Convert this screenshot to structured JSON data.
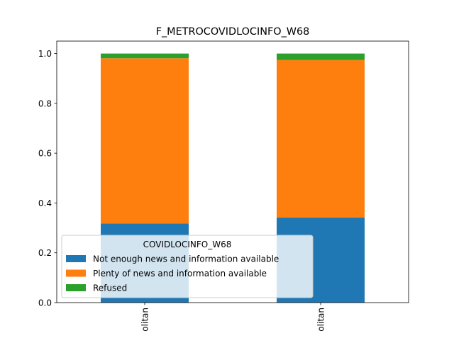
{
  "chart_data": {
    "type": "bar",
    "stacked": true,
    "title": "F_METROCOVIDLOCINFO_W68",
    "xlabel": "",
    "ylabel": "",
    "categories": [
      "olitan",
      "olitan"
    ],
    "series": [
      {
        "name": "Not enough news and information available",
        "color": "#1f77b4",
        "values": [
          0.318,
          0.342
        ]
      },
      {
        "name": "Plenty of news and information available",
        "color": "#ff7f0e",
        "values": [
          0.663,
          0.632
        ]
      },
      {
        "name": "Refused",
        "color": "#2ca02c",
        "values": [
          0.019,
          0.026
        ]
      }
    ],
    "ylim": [
      0,
      1.05
    ],
    "yticks": [
      0.0,
      0.2,
      0.4,
      0.6,
      0.8,
      1.0
    ],
    "ytick_labels": [
      "0.0",
      "0.2",
      "0.4",
      "0.6",
      "0.8",
      "1.0"
    ],
    "grid": false,
    "legend": {
      "title": "COVIDLOCINFO_W68",
      "placement": "lower-left"
    }
  }
}
